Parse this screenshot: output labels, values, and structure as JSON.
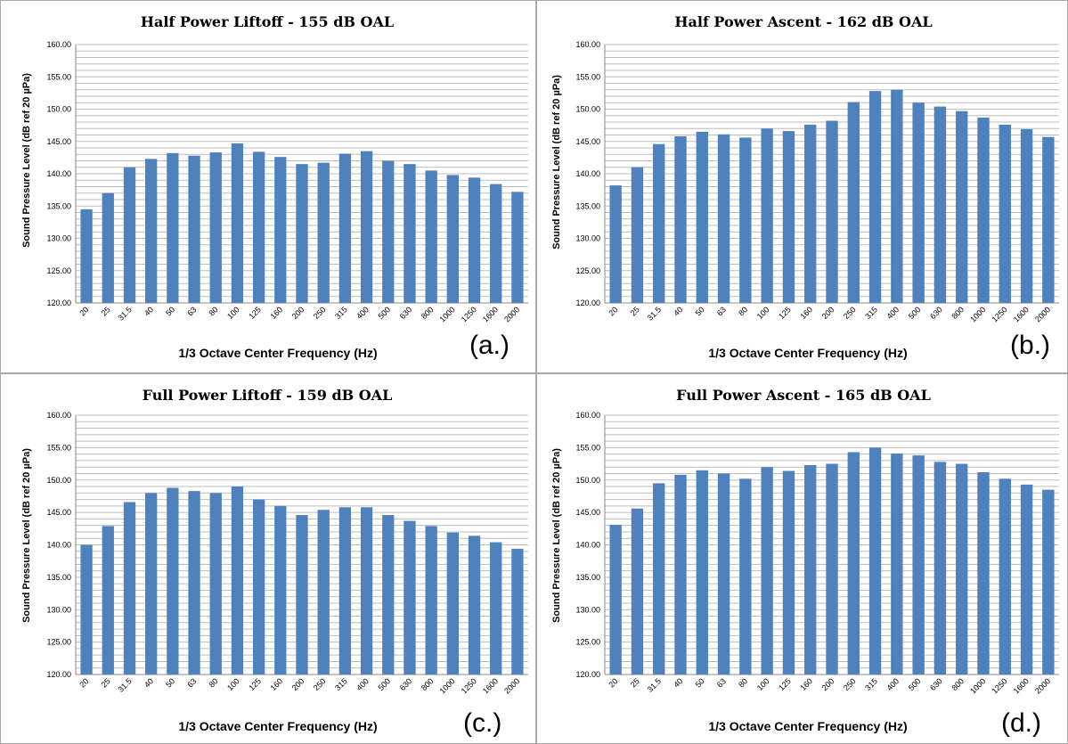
{
  "chart_data": [
    {
      "type": "bar",
      "title": "Half Power Liftoff  - 155 dB OAL",
      "xlabel": "1/3 Octave Center Frequency (Hz)",
      "ylabel": "Sound Pressure Level (dB ref 20 µPa)",
      "panel_label": "(a.)",
      "ylim": [
        120,
        160
      ],
      "yticks": [
        "120.00",
        "125.00",
        "130.00",
        "135.00",
        "140.00",
        "145.00",
        "150.00",
        "155.00",
        "160.00"
      ],
      "categories": [
        "20",
        "25",
        "31.5",
        "40",
        "50",
        "63",
        "80",
        "100",
        "125",
        "160",
        "200",
        "250",
        "315",
        "400",
        "500",
        "630",
        "800",
        "1000",
        "1250",
        "1600",
        "2000"
      ],
      "values": [
        134.5,
        137.0,
        141.0,
        142.3,
        143.2,
        142.8,
        143.3,
        144.7,
        143.4,
        142.6,
        141.5,
        141.7,
        143.1,
        143.5,
        142.0,
        141.5,
        140.5,
        139.8,
        139.4,
        138.4,
        137.2
      ],
      "grid": true
    },
    {
      "type": "bar",
      "title": "Half Power Ascent - 162 dB OAL",
      "xlabel": "1/3 Octave Center Frequency (Hz)",
      "ylabel": "Sound Pressure Level (dB ref 20 µPa)",
      "panel_label": "(b.)",
      "ylim": [
        120,
        160
      ],
      "yticks": [
        "120.00",
        "125.00",
        "130.00",
        "135.00",
        "140.00",
        "145.00",
        "150.00",
        "155.00",
        "160.00"
      ],
      "categories": [
        "20",
        "25",
        "31.5",
        "40",
        "50",
        "63",
        "80",
        "100",
        "125",
        "160",
        "200",
        "250",
        "315",
        "400",
        "500",
        "630",
        "800",
        "1000",
        "1250",
        "1600",
        "2000"
      ],
      "values": [
        138.2,
        141.0,
        144.6,
        145.8,
        146.5,
        146.1,
        145.6,
        147.0,
        146.6,
        147.6,
        148.2,
        151.1,
        152.8,
        153.0,
        151.0,
        150.4,
        149.7,
        148.7,
        147.6,
        146.9,
        145.7
      ],
      "grid": true
    },
    {
      "type": "bar",
      "title": "Full Power Liftoff  - 159 dB OAL",
      "xlabel": "1/3 Octave Center Frequency (Hz)",
      "ylabel": "Sound Pressure Level (dB ref 20 µPa)",
      "panel_label": "(c.)",
      "ylim": [
        120,
        160
      ],
      "yticks": [
        "120.00",
        "125.00",
        "130.00",
        "135.00",
        "140.00",
        "145.00",
        "150.00",
        "155.00",
        "160.00"
      ],
      "categories": [
        "20",
        "25",
        "31.5",
        "40",
        "50",
        "63",
        "80",
        "100",
        "125",
        "160",
        "200",
        "250",
        "315",
        "400",
        "500",
        "630",
        "800",
        "1000",
        "1250",
        "1600",
        "2000"
      ],
      "values": [
        140.0,
        142.9,
        146.6,
        148.0,
        148.8,
        148.3,
        148.0,
        149.0,
        147.0,
        146.0,
        144.6,
        145.4,
        145.8,
        145.8,
        144.6,
        143.7,
        142.9,
        141.9,
        141.4,
        140.4,
        139.4
      ],
      "grid": true
    },
    {
      "type": "bar",
      "title": "Full Power Ascent - 165 dB OAL",
      "xlabel": "1/3 Octave Center Frequency (Hz)",
      "ylabel": "Sound Pressure Level (dB ref 20 µPa)",
      "panel_label": "(d.)",
      "ylim": [
        120,
        160
      ],
      "yticks": [
        "120.00",
        "125.00",
        "130.00",
        "135.00",
        "140.00",
        "145.00",
        "150.00",
        "155.00",
        "160.00"
      ],
      "categories": [
        "20",
        "25",
        "31.5",
        "40",
        "50",
        "63",
        "80",
        "100",
        "125",
        "160",
        "200",
        "250",
        "315",
        "400",
        "500",
        "630",
        "800",
        "1000",
        "1250",
        "1600",
        "2000"
      ],
      "values": [
        143.1,
        145.6,
        149.5,
        150.8,
        151.5,
        151.0,
        150.2,
        152.0,
        151.4,
        152.3,
        152.5,
        154.3,
        155.0,
        154.1,
        153.8,
        152.8,
        152.5,
        151.2,
        150.2,
        149.3,
        148.5
      ],
      "grid": true
    }
  ],
  "colors": {
    "bar": "#4f81bd",
    "grid": "#bdbdbd"
  }
}
